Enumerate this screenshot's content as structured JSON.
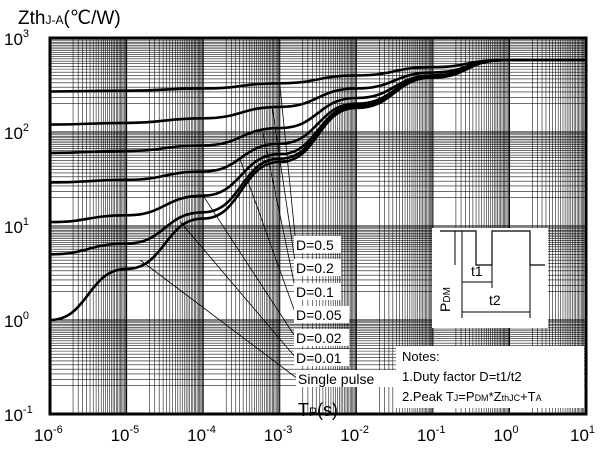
{
  "chart_data": {
    "type": "line",
    "ylabel": "Zth",
    "ylabel_sub": "J-A",
    "ylabel_unit": "(℃/W)",
    "xlabel": "T",
    "xlabel_sub": "P",
    "xlabel_unit": "(s)",
    "x_scale": "log",
    "y_scale": "log",
    "xlim": [
      1e-06,
      10
    ],
    "ylim": [
      0.1,
      1000
    ],
    "grid": true,
    "x_ticks": [
      {
        "base": "10",
        "exp": "-6",
        "value": 1e-06
      },
      {
        "base": "10",
        "exp": "-5",
        "value": 1e-05
      },
      {
        "base": "10",
        "exp": "-4",
        "value": 0.0001
      },
      {
        "base": "10",
        "exp": "-3",
        "value": 0.001
      },
      {
        "base": "10",
        "exp": "-2",
        "value": 0.01
      },
      {
        "base": "10",
        "exp": "-1",
        "value": 0.1
      },
      {
        "base": "10",
        "exp": "0",
        "value": 1
      },
      {
        "base": "10",
        "exp": "1",
        "value": 10
      }
    ],
    "y_ticks": [
      {
        "base": "10",
        "exp": "-1",
        "value": 0.1
      },
      {
        "base": "10",
        "exp": "0",
        "value": 1
      },
      {
        "base": "10",
        "exp": "1",
        "value": 10
      },
      {
        "base": "10",
        "exp": "2",
        "value": 100
      },
      {
        "base": "10",
        "exp": "3",
        "value": 1000
      }
    ],
    "series": [
      {
        "name": "D=0.5",
        "x": [
          1e-06,
          1e-05,
          0.0001,
          0.001,
          0.01,
          0.1,
          0.8,
          10
        ],
        "y": [
          270,
          275,
          290,
          330,
          400,
          490,
          580,
          580
        ],
        "leader_x": 0.001
      },
      {
        "name": "D=0.2",
        "x": [
          1e-06,
          1e-05,
          0.0001,
          0.001,
          0.01,
          0.1,
          0.8,
          10
        ],
        "y": [
          120,
          125,
          140,
          185,
          290,
          430,
          580,
          580
        ],
        "leader_x": 0.0008
      },
      {
        "name": "D=0.1",
        "x": [
          1e-06,
          1e-05,
          0.0001,
          0.001,
          0.01,
          0.1,
          0.8,
          10
        ],
        "y": [
          60,
          63,
          72,
          110,
          230,
          400,
          580,
          580
        ],
        "leader_x": 0.0006
      },
      {
        "name": "D=0.05",
        "x": [
          1e-06,
          1e-05,
          0.0001,
          0.001,
          0.01,
          0.1,
          0.8,
          10
        ],
        "y": [
          29,
          31,
          38,
          75,
          200,
          390,
          580,
          580
        ],
        "leader_x": 0.0003
      },
      {
        "name": "D=0.02",
        "x": [
          1e-06,
          1e-05,
          0.0001,
          0.001,
          0.01,
          0.1,
          0.8,
          10
        ],
        "y": [
          11,
          13,
          21,
          58,
          190,
          385,
          580,
          580
        ],
        "leader_x": 0.0001
      },
      {
        "name": "D=0.01",
        "x": [
          1e-06,
          1e-05,
          0.0001,
          0.001,
          0.01,
          0.1,
          0.8,
          10
        ],
        "y": [
          5,
          6.5,
          14,
          52,
          185,
          380,
          580,
          580
        ],
        "leader_x": 5e-05
      },
      {
        "name": "Single pulse",
        "x": [
          1e-06,
          1e-05,
          0.0001,
          0.001,
          0.01,
          0.1,
          0.8,
          10
        ],
        "y": [
          1,
          3.5,
          12,
          48,
          180,
          380,
          580,
          580
        ],
        "leader_x": 1.5e-05
      }
    ],
    "notes": {
      "title": "Notes:",
      "line1": "1.Duty factor D=t1/t2",
      "line2_prefix": "2.Peak T",
      "line2_sub1": "J",
      "line2_mid": "=P",
      "line2_sub2": "DM",
      "line2_mid2": "*Z",
      "line2_sub3": "thJC",
      "line2_mid3": "+T",
      "line2_sub4": "A"
    },
    "inset": {
      "label_t1": "t1",
      "label_t2": "t2",
      "label_pdm": "P",
      "label_pdm_sub": "DM"
    }
  }
}
